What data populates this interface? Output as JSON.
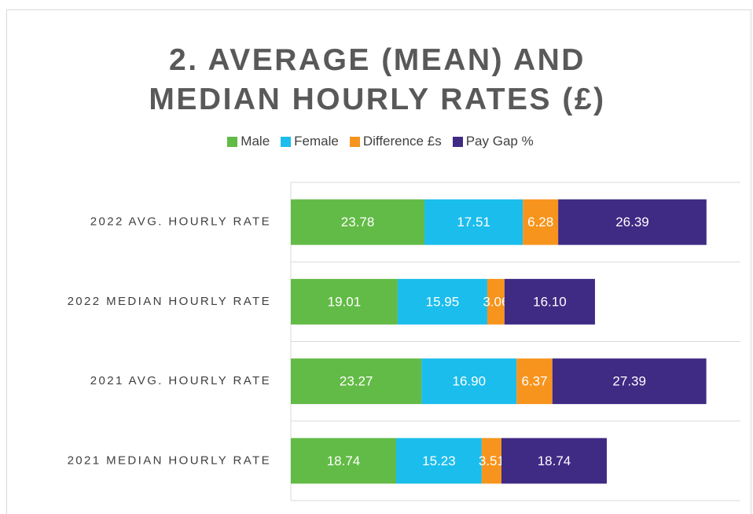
{
  "chart_data": {
    "type": "stacked-bar-horizontal",
    "title": "2. AVERAGE (MEAN) AND MEDIAN HOURLY RATES (£)",
    "categories": [
      "2022 AVG. HOURLY RATE",
      "2022 MEDIAN HOURLY RATE",
      "2021 AVG. HOURLY RATE",
      "2021 MEDIAN HOURLY RATE"
    ],
    "series": [
      {
        "name": "Male",
        "color": "#62bb46",
        "values": [
          23.78,
          19.01,
          23.27,
          18.74
        ]
      },
      {
        "name": "Female",
        "color": "#1bbdec",
        "values": [
          17.51,
          15.95,
          16.9,
          15.23
        ],
        "value_labels": [
          "17.51",
          "15.95",
          "16.90",
          "15.23"
        ]
      },
      {
        "name": "Difference £s",
        "color": "#f7941d",
        "values": [
          6.28,
          3.06,
          6.37,
          3.51
        ]
      },
      {
        "name": "Pay Gap %",
        "color": "#3f2a84",
        "values": [
          26.39,
          16.1,
          27.39,
          18.74
        ],
        "value_labels": [
          "26.39",
          "16.10",
          "27.39",
          "18.74"
        ]
      }
    ],
    "xlim": [
      0,
      80
    ],
    "legend": "top"
  }
}
